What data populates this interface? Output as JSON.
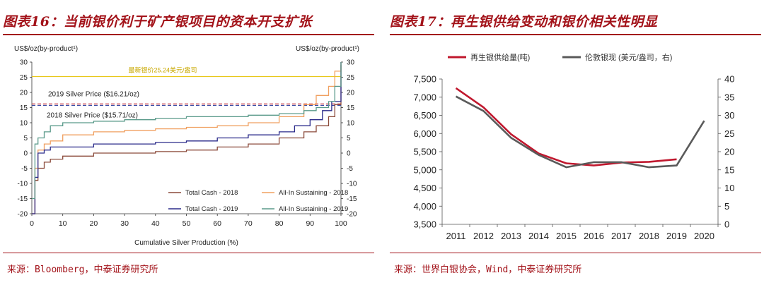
{
  "left": {
    "title": "图表16：当前银价利于矿产银项目的资本开支扩张",
    "source": "来源：Bloomberg，中泰证券研究所",
    "chart_data": {
      "type": "line",
      "xlabel": "Cumulative Silver Production (%)",
      "ylabel_left": "US$/oz(by-product¹)",
      "ylabel_right": "US$/oz(by-product¹)",
      "xlim": [
        0,
        100
      ],
      "ylim": [
        -20,
        30
      ],
      "x_ticks": [
        0,
        10,
        20,
        30,
        40,
        50,
        60,
        70,
        80,
        90,
        100
      ],
      "y_ticks": [
        -20,
        -15,
        -10,
        -5,
        0,
        5,
        10,
        15,
        20,
        25,
        30
      ],
      "annotations": [
        {
          "text": "最新银价25.24美元/盎司",
          "y": 25.24,
          "color": "#e8c81a"
        },
        {
          "text": "2019 Silver Price ($16.21/oz)",
          "y": 16.21,
          "color": "#c0202a"
        },
        {
          "text": "2018 Silver Price ($15.71/oz)",
          "y": 15.71,
          "color": "#3a4fa8"
        }
      ],
      "series": [
        {
          "name": "Total Cash - 2018",
          "color": "#8b4a3a",
          "points": [
            [
              0,
              -20
            ],
            [
              1,
              -9
            ],
            [
              2,
              -5
            ],
            [
              4,
              -3
            ],
            [
              6,
              -2
            ],
            [
              10,
              -1
            ],
            [
              20,
              0
            ],
            [
              30,
              0
            ],
            [
              40,
              0.5
            ],
            [
              50,
              1
            ],
            [
              60,
              2
            ],
            [
              70,
              3
            ],
            [
              80,
              5
            ],
            [
              88,
              7
            ],
            [
              92,
              9
            ],
            [
              96,
              12
            ],
            [
              98,
              16
            ],
            [
              100,
              29
            ]
          ]
        },
        {
          "name": "All-In Sustaining - 2018",
          "color": "#f0a060",
          "points": [
            [
              0,
              -20
            ],
            [
              1,
              -5
            ],
            [
              2,
              1
            ],
            [
              4,
              3
            ],
            [
              6,
              4
            ],
            [
              10,
              6
            ],
            [
              20,
              7
            ],
            [
              30,
              7.5
            ],
            [
              40,
              8
            ],
            [
              50,
              8.5
            ],
            [
              60,
              9
            ],
            [
              70,
              10
            ],
            [
              80,
              12
            ],
            [
              88,
              16
            ],
            [
              92,
              19
            ],
            [
              96,
              22
            ],
            [
              98,
              27
            ],
            [
              100,
              30
            ]
          ]
        },
        {
          "name": "Total Cash - 2019",
          "color": "#2a2a8a",
          "points": [
            [
              0,
              -20
            ],
            [
              1,
              -8
            ],
            [
              2,
              0
            ],
            [
              4,
              1
            ],
            [
              6,
              2
            ],
            [
              10,
              2
            ],
            [
              20,
              3
            ],
            [
              30,
              3
            ],
            [
              40,
              3.5
            ],
            [
              50,
              4
            ],
            [
              60,
              5
            ],
            [
              70,
              6
            ],
            [
              80,
              7
            ],
            [
              85,
              9
            ],
            [
              90,
              11
            ],
            [
              94,
              14
            ],
            [
              97,
              17
            ],
            [
              100,
              30
            ]
          ]
        },
        {
          "name": "All-In Sustaining - 2019",
          "color": "#5a9a8a",
          "points": [
            [
              0,
              -15
            ],
            [
              1,
              3
            ],
            [
              2,
              5
            ],
            [
              4,
              7
            ],
            [
              6,
              9
            ],
            [
              10,
              10
            ],
            [
              20,
              10.5
            ],
            [
              30,
              11
            ],
            [
              40,
              11.5
            ],
            [
              50,
              12
            ],
            [
              60,
              12
            ],
            [
              70,
              12.5
            ],
            [
              80,
              13
            ],
            [
              88,
              14
            ],
            [
              92,
              15
            ],
            [
              96,
              17
            ],
            [
              98,
              22
            ],
            [
              100,
              30
            ]
          ]
        }
      ]
    }
  },
  "right": {
    "title": "图表17：再生银供给变动和银价相关性明显",
    "source": "来源：世界白银协会，Wind，中泰证券研究所",
    "chart_data": {
      "type": "line",
      "categories": [
        "2011",
        "2012",
        "2013",
        "2014",
        "2015",
        "2016",
        "2017",
        "2018",
        "2019",
        "2020"
      ],
      "ylim_left": [
        3500,
        7500
      ],
      "ylim_right": [
        0,
        40
      ],
      "y_ticks_left": [
        "3,500",
        "4,000",
        "4,500",
        "5,000",
        "5,500",
        "6,000",
        "6,500",
        "7,000",
        "7,500"
      ],
      "y_ticks_right": [
        "0",
        "5",
        "10",
        "15",
        "20",
        "25",
        "30",
        "35",
        "40"
      ],
      "series": [
        {
          "name": "再生银供给量(吨)",
          "axis": "left",
          "color": "#c0182e",
          "values": [
            7250,
            6720,
            5980,
            5450,
            5180,
            5120,
            5200,
            5220,
            5290,
            null
          ]
        },
        {
          "name": "伦敦银现 (美元/盎司，右)",
          "axis": "right",
          "color": "#5a5a5a",
          "values": [
            35.2,
            31.2,
            23.8,
            19.1,
            15.7,
            17.1,
            17.1,
            15.7,
            16.2,
            28.5
          ]
        }
      ]
    }
  }
}
